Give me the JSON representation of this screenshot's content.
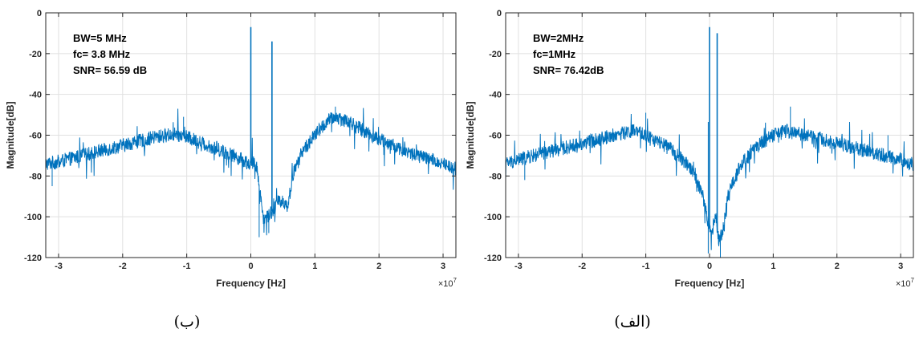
{
  "captions": {
    "left": "(ب)",
    "right": "(الف)"
  },
  "chart_data": [
    {
      "type": "line",
      "panel": "left",
      "xlabel": "Frequency [Hz]",
      "ylabel": "Magnitude[dB]",
      "x_exponent_label": "×10",
      "x_exponent_power": "7",
      "x_multiplier": 10000000,
      "xlim": [
        -3.2,
        3.2
      ],
      "ylim": [
        -120,
        0
      ],
      "x_ticks": [
        -3,
        -2,
        -1,
        0,
        1,
        2,
        3
      ],
      "y_ticks": [
        0,
        -20,
        -40,
        -60,
        -80,
        -100,
        -120
      ],
      "grid": true,
      "line_color": "#0072BD",
      "annotations": [
        "BW=5 MHz",
        "fc= 3.8 MHz",
        "SNR= 56.59 dB"
      ],
      "series": [
        {
          "points": [
            [
              -3.2,
              -74
            ],
            [
              -3.0,
              -73
            ],
            [
              -2.5,
              -69
            ],
            [
              -2.0,
              -65
            ],
            [
              -1.5,
              -61
            ],
            [
              -1.2,
              -59.5
            ],
            [
              -1.0,
              -61
            ],
            [
              -0.5,
              -67
            ],
            [
              -0.2,
              -71
            ],
            [
              -0.02,
              -74
            ],
            [
              0.0,
              -7
            ],
            [
              0.02,
              -73
            ],
            [
              0.1,
              -76
            ],
            [
              0.15,
              -90
            ],
            [
              0.2,
              -101
            ],
            [
              0.28,
              -99
            ],
            [
              0.33,
              -14
            ],
            [
              0.36,
              -96
            ],
            [
              0.42,
              -93
            ],
            [
              0.5,
              -92
            ],
            [
              0.58,
              -95
            ],
            [
              0.65,
              -80
            ],
            [
              0.8,
              -68
            ],
            [
              1.0,
              -60
            ],
            [
              1.2,
              -53
            ],
            [
              1.33,
              -51
            ],
            [
              1.5,
              -53
            ],
            [
              2.0,
              -62
            ],
            [
              2.5,
              -69
            ],
            [
              3.0,
              -74
            ],
            [
              3.2,
              -76
            ]
          ],
          "noise_db": 3.5,
          "peaks": [
            [
              -1.05,
              -51
            ],
            [
              1.32,
              -46
            ],
            [
              -3.1,
              -85
            ],
            [
              0.13,
              -110
            ],
            [
              0.28,
              -108
            ],
            [
              3.2,
              -84
            ]
          ]
        }
      ]
    },
    {
      "type": "line",
      "panel": "right",
      "xlabel": "Frequency [Hz]",
      "ylabel": "Magnitude[dB]",
      "x_exponent_label": "×10",
      "x_exponent_power": "7",
      "x_multiplier": 10000000,
      "xlim": [
        -3.2,
        3.2
      ],
      "ylim": [
        -120,
        0
      ],
      "x_ticks": [
        -3,
        -2,
        -1,
        0,
        1,
        2,
        3
      ],
      "y_ticks": [
        0,
        -20,
        -40,
        -60,
        -80,
        -100,
        -120
      ],
      "grid": true,
      "line_color": "#0072BD",
      "annotations": [
        "BW=2MHz",
        "fc=1MHz",
        "SNR= 76.42dB"
      ],
      "series": [
        {
          "points": [
            [
              -3.2,
              -74
            ],
            [
              -3.0,
              -72
            ],
            [
              -2.5,
              -68
            ],
            [
              -2.0,
              -64
            ],
            [
              -1.5,
              -60
            ],
            [
              -1.2,
              -58
            ],
            [
              -1.0,
              -60
            ],
            [
              -0.6,
              -67
            ],
            [
              -0.3,
              -76
            ],
            [
              -0.12,
              -88
            ],
            [
              -0.04,
              -100
            ],
            [
              0.0,
              -7
            ],
            [
              0.03,
              -110
            ],
            [
              0.07,
              -102
            ],
            [
              0.1,
              -100
            ],
            [
              0.12,
              -10
            ],
            [
              0.15,
              -112
            ],
            [
              0.2,
              -108
            ],
            [
              0.3,
              -88
            ],
            [
              0.5,
              -74
            ],
            [
              0.8,
              -64
            ],
            [
              1.0,
              -60
            ],
            [
              1.2,
              -58
            ],
            [
              1.5,
              -60
            ],
            [
              2.0,
              -64
            ],
            [
              2.5,
              -68
            ],
            [
              3.0,
              -72
            ],
            [
              3.2,
              -74
            ]
          ],
          "noise_db": 3.5,
          "peaks": [
            [
              -1.0,
              -49
            ],
            [
              1.27,
              -46
            ],
            [
              -0.02,
              -118
            ],
            [
              0.17,
              -120
            ],
            [
              -2.9,
              -82
            ],
            [
              2.8,
              -60
            ]
          ]
        }
      ]
    }
  ]
}
